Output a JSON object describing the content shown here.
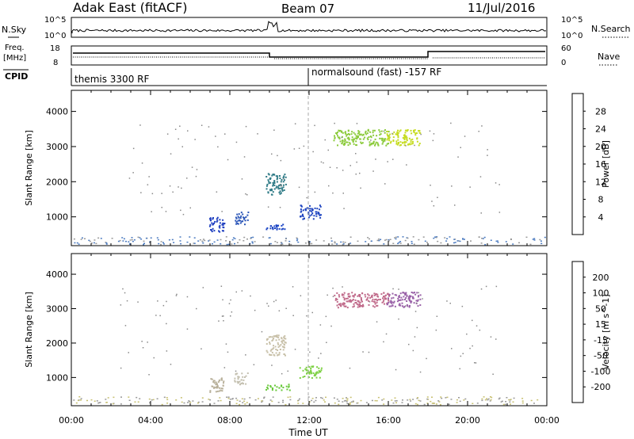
{
  "header": {
    "station": "Adak East (fitACF)",
    "beam": "Beam 07",
    "date": "11/Jul/2016"
  },
  "top_strip": {
    "nsky_label": "N.Sky",
    "nsky_ticks": [
      "10^5",
      "10^0"
    ],
    "nsearch_label": "N.Search",
    "nsearch_ticks": [
      "10^5",
      "10^0"
    ],
    "freq_label": "Freq.",
    "freq_unit": "[MHz]",
    "freq_ticks": [
      "18",
      "8"
    ],
    "nave_label": "Nave",
    "nave_ticks": [
      "60",
      "0"
    ],
    "cpid_label": "CPID",
    "cpid_segments": [
      "themis 3300 RF",
      "normalsound (fast) -157 RF"
    ]
  },
  "chart_data": [
    {
      "type": "heatmap",
      "name": "power-panel",
      "ylabel": "Slant Range [km]",
      "yticks": [
        1000,
        2000,
        3000,
        4000
      ],
      "ylim": [
        180,
        4600
      ],
      "xlim": [
        0,
        24
      ],
      "colorbar": {
        "label": "Power [dB]",
        "ticks": [
          "28",
          "24",
          "20",
          "16",
          "12",
          "8",
          "4"
        ],
        "colors": [
          "#0000ff",
          "#1a46b3",
          "#2f6a90",
          "#3c8c6a",
          "#51b05a",
          "#8ccb3c",
          "#c6dc22",
          "#f2c62a",
          "#f7a11a",
          "#f97b12",
          "#f5450d",
          "#ee0b0b"
        ]
      },
      "regions": [
        {
          "x": [
            6.9,
            7.7
          ],
          "y": [
            580,
            1000
          ],
          "color": "#1f3fc0"
        },
        {
          "x": [
            8.2,
            8.9
          ],
          "y": [
            800,
            1150
          ],
          "color": "#2b56b8"
        },
        {
          "x": [
            9.8,
            10.9
          ],
          "y": [
            650,
            820
          ],
          "color": "#1a44c4"
        },
        {
          "x": [
            9.8,
            10.8
          ],
          "y": [
            1650,
            2250
          ],
          "color": "#2e7a86"
        },
        {
          "x": [
            11.5,
            12.6
          ],
          "y": [
            950,
            1350
          ],
          "color": "#1f45c0"
        },
        {
          "x": [
            13.2,
            16.0
          ],
          "y": [
            3050,
            3500
          ],
          "color": "#8ccb3c"
        },
        {
          "x": [
            15.9,
            17.6
          ],
          "y": [
            3050,
            3500
          ],
          "color": "#c6dc22"
        }
      ],
      "x_ticklabels": []
    },
    {
      "type": "heatmap",
      "name": "velocity-panel",
      "ylabel": "Slant Range [km]",
      "xlabel": "Time UT",
      "yticks": [
        1000,
        2000,
        3000,
        4000
      ],
      "ylim": [
        180,
        4600
      ],
      "xlim": [
        0,
        24
      ],
      "colorbar": {
        "label": "Velocity [m s^-1]",
        "ticks": [
          "200",
          "100",
          "50",
          "15",
          "-15",
          "-50",
          "-100",
          "-200"
        ],
        "colors": [
          "#ff0000",
          "#ff5b00",
          "#ff9a10",
          "#f7c843",
          "#c8c8c8",
          "#b8b8b8",
          "#82d13a",
          "#4fb43a",
          "#2c7d63",
          "#2050a8",
          "#0016d8"
        ]
      },
      "regions": [
        {
          "x": [
            6.9,
            7.7
          ],
          "y": [
            580,
            1000
          ],
          "color": "#b8b09a"
        },
        {
          "x": [
            8.2,
            8.9
          ],
          "y": [
            800,
            1150
          ],
          "color": "#c4c0b0"
        },
        {
          "x": [
            9.8,
            11.0
          ],
          "y": [
            650,
            820
          ],
          "color": "#68c83a"
        },
        {
          "x": [
            9.8,
            10.8
          ],
          "y": [
            1650,
            2250
          ],
          "color": "#c8c0a8"
        },
        {
          "x": [
            11.5,
            12.6
          ],
          "y": [
            1000,
            1350
          ],
          "color": "#7cd042"
        },
        {
          "x": [
            13.2,
            16.0
          ],
          "y": [
            3050,
            3500
          ],
          "color": "#c06a8a"
        },
        {
          "x": [
            15.9,
            17.6
          ],
          "y": [
            3050,
            3500
          ],
          "color": "#9a62a8"
        }
      ],
      "x_ticklabels": [
        "00:00",
        "04:00",
        "08:00",
        "12:00",
        "16:00",
        "20:00",
        "00:00"
      ]
    }
  ]
}
